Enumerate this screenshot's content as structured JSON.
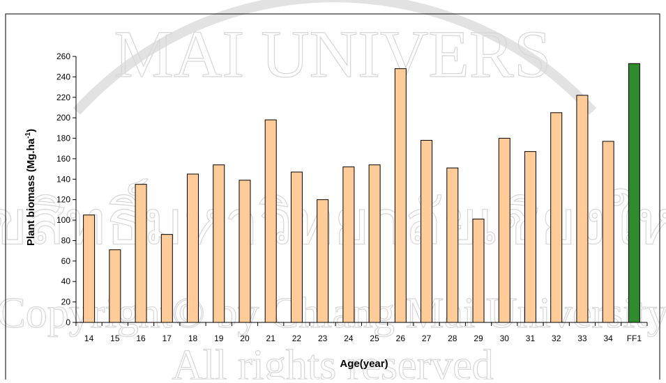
{
  "chart_data": {
    "type": "bar",
    "categories": [
      "14",
      "15",
      "16",
      "17",
      "18",
      "19",
      "20",
      "21",
      "22",
      "23",
      "24",
      "25",
      "26",
      "27",
      "28",
      "29",
      "30",
      "31",
      "32",
      "33",
      "34",
      "FF1"
    ],
    "values": [
      105,
      71,
      135,
      86,
      145,
      154,
      139,
      198,
      147,
      120,
      152,
      154,
      248,
      178,
      151,
      101,
      180,
      167,
      205,
      222,
      177,
      253
    ],
    "highlight_category": "FF1",
    "colors": {
      "bar_fill": "#FFCC99",
      "highlight_fill": "#2E8B2E",
      "bar_stroke": "#000000"
    },
    "xlabel": "Age(year)",
    "ylabel_parts": {
      "main": "Plant biomass (Mg.ha",
      "sup": "-1",
      "end": ")"
    },
    "ylim": [
      0,
      260
    ],
    "yticks": [
      0,
      20,
      40,
      60,
      80,
      100,
      120,
      140,
      160,
      180,
      200,
      220,
      240,
      260
    ],
    "grid": false,
    "legend": "none"
  },
  "watermark": {
    "top_text": "MAI UNIVERS",
    "line2": "ลิขสิทธิ์มหาวิทยาลัยเชียงใหม่",
    "line3": "Copyright© by Chiang Mai University",
    "line4": "All rights reserved"
  }
}
